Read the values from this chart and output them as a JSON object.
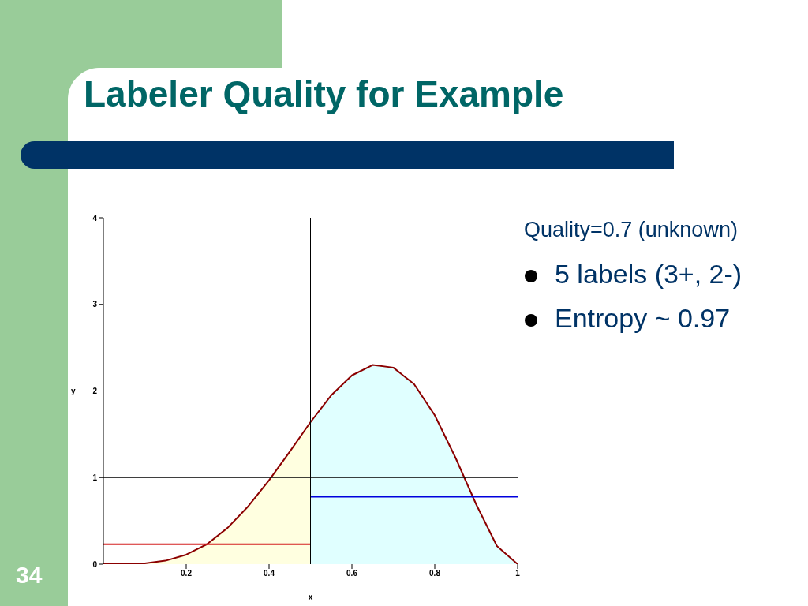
{
  "chart_data": {
    "type": "line",
    "title": "Labeler Quality for Example",
    "xlabel": "x",
    "ylabel": "y",
    "annotations": [
      "Quality=0.7 (unknown)",
      "5 labels (3+, 2-)",
      "Entropy ~ 0.97",
      "34"
    ],
    "xlim": [
      0,
      1
    ],
    "xticks": [
      0.2,
      0.4,
      0.6,
      0.8,
      1
    ],
    "ylim": [
      0,
      4
    ],
    "yticks": [
      0,
      1,
      2,
      3,
      4
    ],
    "grid": false,
    "legend": false,
    "marker": "none",
    "line_style": "solid",
    "ref_lines": [
      {
        "axis": "y",
        "value": 1,
        "color": "#000000"
      },
      {
        "axis": "x",
        "value": 0.5,
        "color": "#000000"
      }
    ],
    "series": [
      {
        "type": "area",
        "color": "#ffffe0",
        "x": [
          0,
          0.05,
          0.1,
          0.15,
          0.2,
          0.25,
          0.3,
          0.35,
          0.4,
          0.45,
          0.5
        ],
        "values": [
          0,
          0,
          0.01,
          0.04,
          0.11,
          0.23,
          0.42,
          0.67,
          0.97,
          1.3,
          1.64
        ]
      },
      {
        "type": "area",
        "color": "#e0ffff",
        "x": [
          0.5,
          0.55,
          0.6,
          0.65,
          0.7,
          0.75,
          0.8,
          0.85,
          0.9,
          0.95,
          1
        ],
        "values": [
          1.64,
          1.95,
          2.18,
          2.3,
          2.27,
          2.08,
          1.72,
          1.23,
          0.69,
          0.21,
          0
        ]
      },
      {
        "color": "#8b0000",
        "x": [
          0,
          0.05,
          0.1,
          0.15,
          0.2,
          0.25,
          0.3,
          0.35,
          0.4,
          0.45,
          0.5,
          0.55,
          0.6,
          0.65,
          0.7,
          0.75,
          0.8,
          0.85,
          0.9,
          0.95,
          1
        ],
        "values": [
          0,
          0,
          0.01,
          0.04,
          0.11,
          0.23,
          0.42,
          0.67,
          0.97,
          1.3,
          1.64,
          1.95,
          2.18,
          2.3,
          2.27,
          2.08,
          1.72,
          1.23,
          0.69,
          0.21,
          0
        ]
      },
      {
        "type": "line",
        "color": "#d42020",
        "x": [
          0,
          0.5
        ],
        "values": [
          0.23,
          0.23
        ]
      },
      {
        "type": "line",
        "color": "#0000dd",
        "x": [
          0.5,
          1
        ],
        "values": [
          0.78,
          0.78
        ]
      }
    ]
  }
}
